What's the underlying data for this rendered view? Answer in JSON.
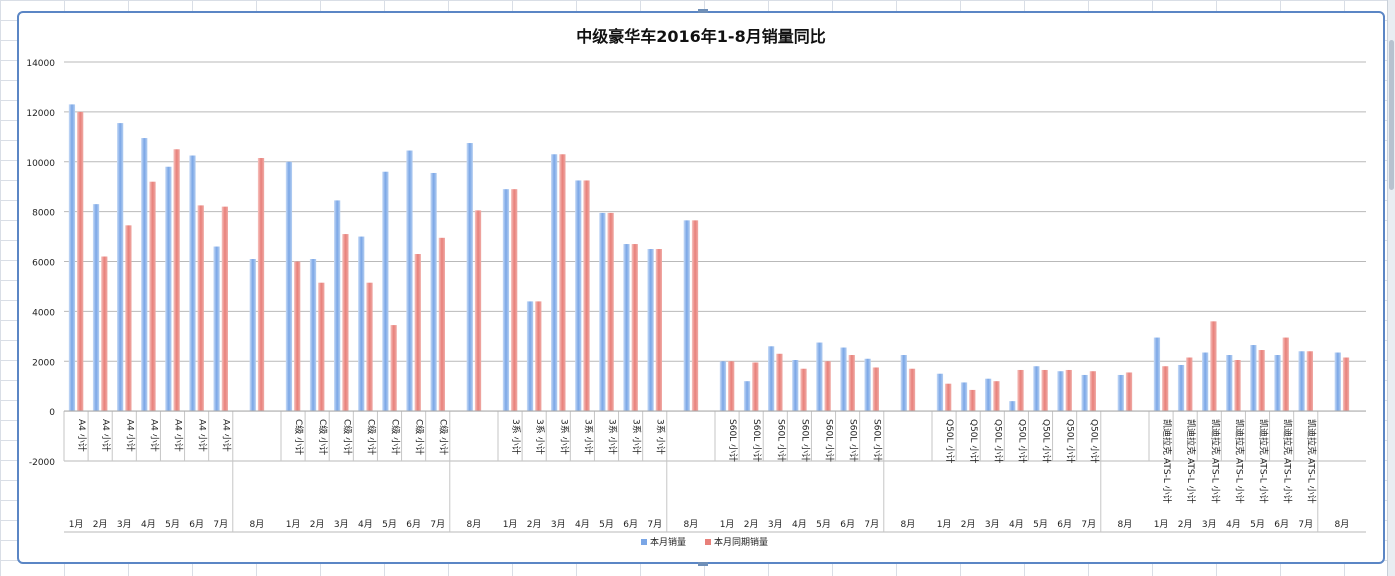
{
  "chart_data": {
    "type": "bar",
    "title": "中级豪华车2016年1-8月销量同比",
    "ylim": [
      -2000,
      14000
    ],
    "yticks": [
      -2000,
      0,
      2000,
      4000,
      6000,
      8000,
      10000,
      12000,
      14000
    ],
    "grid": true,
    "legend_position": "bottom",
    "colors": {
      "本月销量": "#7aa6e6",
      "本月同期销量": "#e8807a"
    },
    "groups": [
      {
        "model": "A4 小计",
        "months": [
          "1月",
          "2月",
          "3月",
          "4月",
          "5月",
          "6月",
          "7月",
          "8月"
        ]
      },
      {
        "model": "C级 小计",
        "months": [
          "1月",
          "2月",
          "3月",
          "4月",
          "5月",
          "6月",
          "7月",
          "8月"
        ]
      },
      {
        "model": "3系 小计",
        "months": [
          "1月",
          "2月",
          "3月",
          "4月",
          "5月",
          "6月",
          "7月",
          "8月"
        ]
      },
      {
        "model": "S60L 小计",
        "months": [
          "1月",
          "2月",
          "3月",
          "4月",
          "5月",
          "6月",
          "7月",
          "8月"
        ]
      },
      {
        "model": "Q50L 小计",
        "months": [
          "1月",
          "2月",
          "3月",
          "4月",
          "5月",
          "6月",
          "7月",
          "8月"
        ]
      },
      {
        "model": "凯迪拉克 ATS-L 小计",
        "months": [
          "1月",
          "2月",
          "3月",
          "4月",
          "5月",
          "6月",
          "7月",
          "8月"
        ]
      }
    ],
    "series": [
      {
        "name": "本月销量",
        "values": [
          [
            12300,
            8300,
            11550,
            10950,
            9800,
            10250,
            6600,
            6100
          ],
          [
            10000,
            6100,
            8450,
            7000,
            9600,
            10450,
            9550,
            10750
          ],
          [
            8900,
            4400,
            10300,
            9250,
            7950,
            6700,
            6500,
            7650
          ],
          [
            2000,
            1200,
            2600,
            2050,
            2750,
            2550,
            2100,
            2250
          ],
          [
            1500,
            1150,
            1300,
            400,
            1800,
            1600,
            1450,
            1450
          ],
          [
            2950,
            1850,
            2350,
            2250,
            2650,
            2250,
            2400,
            2350
          ]
        ]
      },
      {
        "name": "本月同期销量",
        "values": [
          [
            12000,
            6200,
            7450,
            9200,
            10500,
            8250,
            8200,
            10150
          ],
          [
            6000,
            5150,
            7100,
            5150,
            3450,
            6300,
            6950,
            8050
          ],
          [
            8900,
            4400,
            10300,
            9250,
            7950,
            6700,
            6500,
            7650
          ],
          [
            2000,
            1950,
            2300,
            1700,
            2000,
            2250,
            1750,
            1700
          ],
          [
            1100,
            850,
            1200,
            1650,
            1650,
            1650,
            1600,
            1550
          ],
          [
            1800,
            2150,
            3600,
            2050,
            2450,
            2950,
            2400,
            2150
          ]
        ]
      }
    ]
  }
}
